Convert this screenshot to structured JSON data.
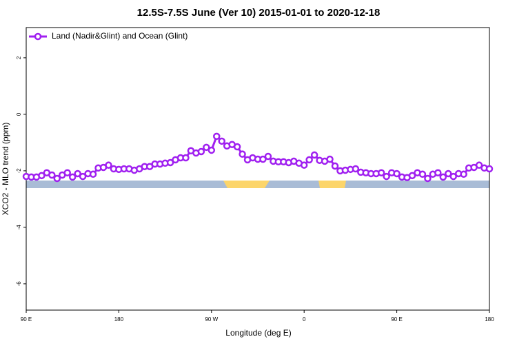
{
  "chart_data": {
    "type": "line",
    "title": "12.5S-7.5S June (Ver 10)   2015-01-01 to 2020-12-18",
    "xlabel": "Longitude (deg E)",
    "ylabel": "XCO2 - MLO trend (ppm)",
    "legend": "top-left",
    "x": [
      90,
      95,
      100,
      105,
      110,
      115,
      120,
      125,
      130,
      135,
      140,
      145,
      150,
      155,
      160,
      165,
      170,
      175,
      180,
      185,
      190,
      195,
      200,
      205,
      210,
      215,
      220,
      225,
      230,
      235,
      240,
      245,
      250,
      255,
      260,
      265,
      270,
      275,
      280,
      285,
      290,
      295,
      300,
      305,
      310,
      315,
      320,
      325,
      330,
      335,
      340,
      345,
      350,
      355,
      360,
      365,
      370,
      375,
      380,
      385,
      390,
      395,
      400,
      405,
      410,
      415,
      420,
      425,
      430,
      435,
      440,
      445,
      450,
      455,
      460,
      465,
      470,
      475,
      480,
      485,
      490,
      495,
      500,
      505,
      510,
      515,
      520,
      525,
      530,
      535,
      540
    ],
    "series": [
      {
        "name": "Land (Nadir&Glint) and Ocean (Glint)",
        "color": "#a020f0",
        "values": [
          -2.2,
          -2.22,
          -2.22,
          -2.17,
          -2.07,
          -2.15,
          -2.27,
          -2.15,
          -2.07,
          -2.22,
          -2.1,
          -2.2,
          -2.1,
          -2.12,
          -1.9,
          -1.88,
          -1.8,
          -1.93,
          -1.95,
          -1.93,
          -1.93,
          -1.98,
          -1.93,
          -1.85,
          -1.85,
          -1.76,
          -1.76,
          -1.73,
          -1.71,
          -1.61,
          -1.54,
          -1.54,
          -1.29,
          -1.37,
          -1.32,
          -1.17,
          -1.27,
          -0.78,
          -0.95,
          -1.12,
          -1.07,
          -1.15,
          -1.41,
          -1.61,
          -1.54,
          -1.59,
          -1.59,
          -1.49,
          -1.66,
          -1.68,
          -1.68,
          -1.71,
          -1.66,
          -1.73,
          -1.8,
          -1.61,
          -1.44,
          -1.63,
          -1.66,
          -1.59,
          -1.83,
          -2.0,
          -1.98,
          -1.95,
          -1.93,
          -2.05,
          -2.07,
          -2.1,
          -2.1,
          -2.07,
          -2.2,
          -2.07,
          -2.1,
          -2.22,
          -2.24,
          -2.17,
          -2.07,
          -2.12,
          -2.27,
          -2.12,
          -2.07,
          -2.22,
          -2.1,
          -2.2,
          -2.1,
          -2.12,
          -1.9,
          -1.88,
          -1.8,
          -1.9,
          -1.93
        ]
      }
    ],
    "xlim": [
      90,
      540
    ],
    "xticks": [
      {
        "value": 90,
        "label": "90 E"
      },
      180,
      {
        "value": 270,
        "label": "90 W"
      },
      {
        "value": 360,
        "label": "0"
      },
      {
        "value": 450,
        "label": "90 E"
      },
      {
        "value": 540,
        "label": "180"
      }
    ],
    "ylim": [
      -6.93,
      3.07
    ],
    "yticks": [
      -6,
      -4,
      -2,
      0,
      2
    ]
  }
}
